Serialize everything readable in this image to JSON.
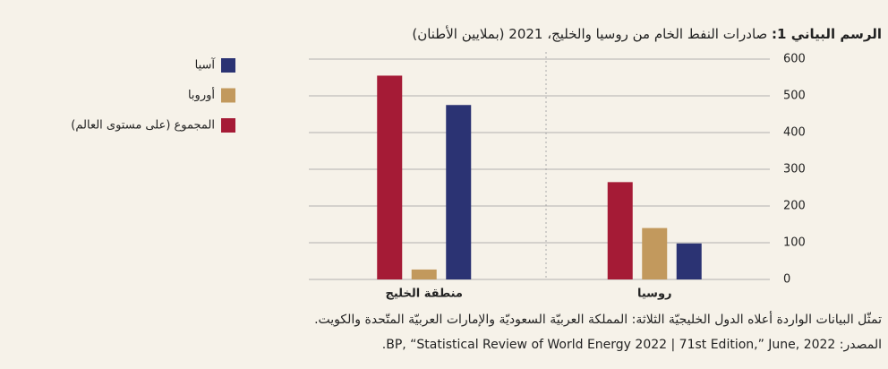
{
  "chart_data": {
    "type": "bar",
    "title_label": "الرسم البياني 1:",
    "title": "صادرات النفط الخام من روسيا والخليج، 2021 (بملايين الأطنان)",
    "categories": [
      "روسيا",
      "منطقة الخليج"
    ],
    "series": [
      {
        "name": "آسيا",
        "color": "#2b3373",
        "values": [
          98,
          475
        ]
      },
      {
        "name": "أوروبا",
        "color": "#c2995d",
        "values": [
          140,
          27
        ]
      },
      {
        "name": "المجموع (على مستوى العالم)",
        "color": "#a51b36",
        "values": [
          265,
          555
        ]
      }
    ],
    "ylim": [
      0,
      600
    ],
    "yticks": [
      0,
      100,
      200,
      300,
      400,
      500,
      600
    ],
    "grid": true,
    "legend": "top-left",
    "notes": [
      "تمثّل البيانات الواردة أعلاه الدول الخليجيّة الثلاثة: المملكة العربيّة السعوديّة والإمارات العربيّة المتّحدة والكويت.",
      "المصدر: BP, “Statistical Review of World Energy 2022 | 71st Edition,” June, 2022."
    ]
  }
}
